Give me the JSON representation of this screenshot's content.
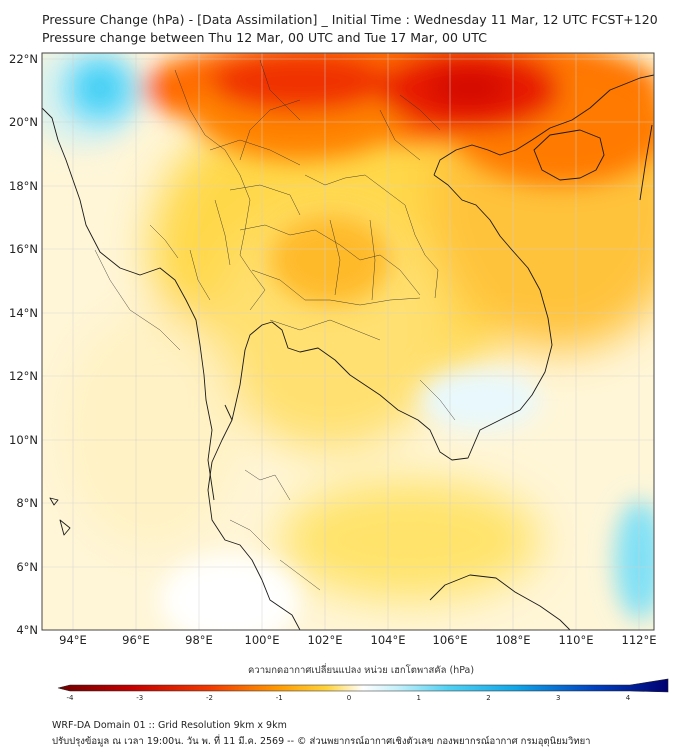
{
  "title": {
    "line1": "Pressure Change (hPa) - [Data Assimilation] _ Initial Time : Wednesday 11 Mar, 12 UTC FCST+120",
    "line2": "Pressure change between Thu 12 Mar, 00 UTC and Tue 17 Mar, 00 UTC"
  },
  "map": {
    "lat_labels": [
      "22°N",
      "20°N",
      "18°N",
      "16°N",
      "14°N",
      "12°N",
      "10°N",
      "8°N",
      "6°N",
      "4°N"
    ],
    "lon_labels": [
      "94°E",
      "96°E",
      "98°E",
      "100°E",
      "102°E",
      "104°E",
      "106°E",
      "108°E",
      "110°E",
      "112°E"
    ],
    "extent": {
      "lon": [
        93,
        112.5
      ],
      "lat": [
        4,
        22.2
      ]
    }
  },
  "colorbar": {
    "title": "ความกดอากาศเปลี่ยนแปลง หน่วย เฮกโตพาสคัล (hPa)",
    "ticks": [
      "-4",
      "-3",
      "-2",
      "-1",
      "0",
      "1",
      "2",
      "3",
      "4"
    ],
    "colors": [
      "#7a0000",
      "#c40000",
      "#e83000",
      "#ff8800",
      "#ffc300",
      "#ffe060",
      "#fff8d0",
      "#ffffff",
      "#cff3fb",
      "#7fdff6",
      "#2cc4f0",
      "#0097e0",
      "#0050c8",
      "#0000a0",
      "#000060"
    ]
  },
  "footer": {
    "line1": "WRF-DA Domain 01 :: Grid Resolution 9km x 9km",
    "line2": "ปรับปรุงข้อมูล ณ เวลา 19:00น. วัน พ. ที่ 11 มี.ค. 2569 -- © ส่วนพยากรณ์อากาศเชิงตัวเลข กองพยากรณ์อากาศ กรมอุตุนิยมวิทยา"
  }
}
